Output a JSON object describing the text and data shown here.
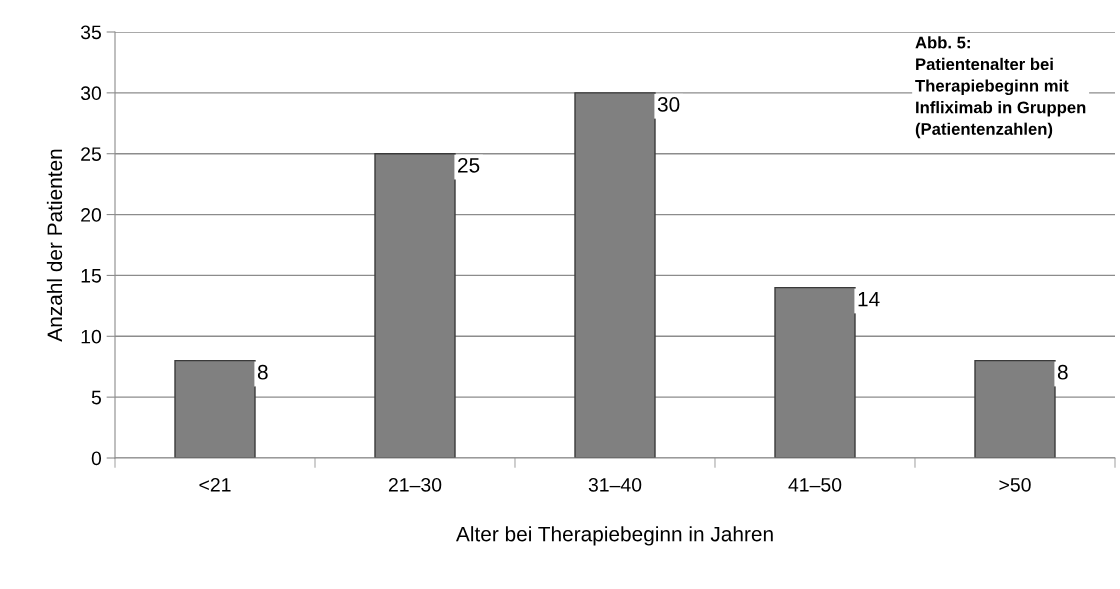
{
  "chart_data": {
    "type": "bar",
    "title": "Abb. 5:\nPatientenalter bei\nTherapiebeginn mit\nInfliximab in Gruppen\n(Patientenzahlen)",
    "xlabel": "Alter bei Therapiebeginn in Jahren",
    "ylabel": "Anzahl der Patienten",
    "categories": [
      "<21",
      "21–30",
      "31–40",
      "41–50",
      ">50"
    ],
    "values": [
      8,
      25,
      30,
      14,
      8
    ],
    "color": "#808080",
    "ylim": [
      0,
      35
    ],
    "yticks": [
      0,
      5,
      10,
      15,
      20,
      25,
      30,
      35
    ],
    "grid": "y",
    "data_labels": true
  }
}
